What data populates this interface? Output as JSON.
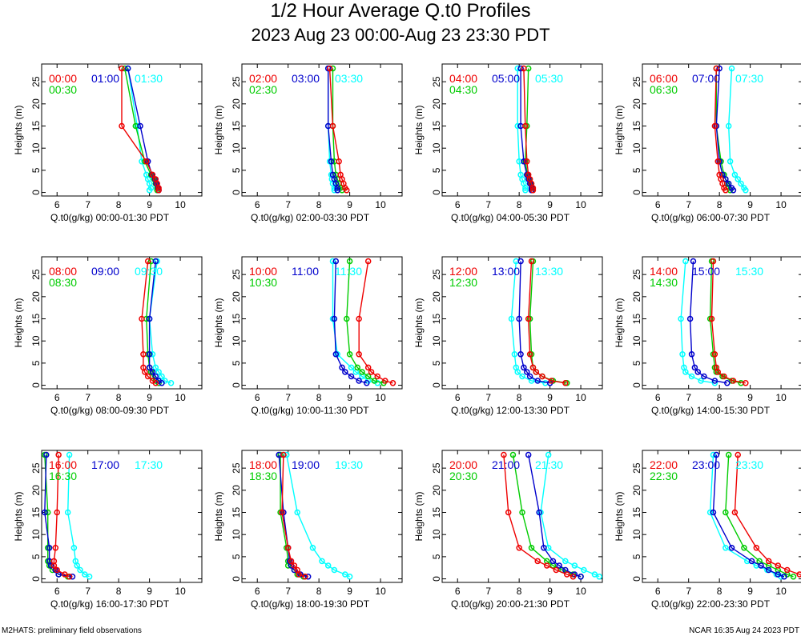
{
  "title_line1": "1/2 Hour Average Q.t0 Profiles",
  "title_line2": "2023 Aug 23 00:00-Aug 23 23:30 PDT",
  "footer_left": "M2HATS: preliminary field observations",
  "footer_right": "NCAR 16:35 Aug 24 2023 PDT",
  "colors": {
    "series1": "#ee0000",
    "series2": "#0000cc",
    "series3": "#00cc00",
    "series4": "#00ffff"
  },
  "chart_data": {
    "type": "scatter",
    "ylabel": "Heights (m)",
    "xlim": [
      5.5,
      10.7
    ],
    "ylim": [
      -0.8,
      29
    ],
    "xticks": [
      6,
      7,
      8,
      9,
      10
    ],
    "yticks": [
      0,
      5,
      10,
      15,
      20,
      25
    ],
    "heights": [
      0.5,
      1,
      2,
      3,
      4,
      7,
      15,
      28
    ],
    "panels": [
      {
        "xlabel": "Q.t0(g/kg) 00:00-01:30 PDT",
        "series": [
          {
            "name": "00:00",
            "values": [
              9.3,
              9.3,
              9.25,
              9.2,
              9.1,
              8.9,
              8.1,
              8.1
            ]
          },
          {
            "name": "01:00",
            "values": [
              9.3,
              9.28,
              9.22,
              9.18,
              9.08,
              8.95,
              8.7,
              8.3
            ]
          },
          {
            "name": "00:30",
            "values": [
              9.25,
              9.25,
              9.2,
              9.15,
              9.05,
              8.85,
              8.55,
              8.2
            ]
          },
          {
            "name": "01:30",
            "values": [
              9.0,
              9.05,
              9.0,
              8.95,
              8.9,
              8.75,
              8.6,
              8.3
            ]
          }
        ]
      },
      {
        "xlabel": "Q.t0(g/kg) 02:00-03:30 PDT",
        "series": [
          {
            "name": "02:00",
            "values": [
              8.9,
              8.85,
              8.8,
              8.75,
              8.7,
              8.65,
              8.45,
              8.35
            ]
          },
          {
            "name": "03:00",
            "values": [
              8.6,
              8.6,
              8.55,
              8.5,
              8.45,
              8.4,
              8.3,
              8.3
            ]
          },
          {
            "name": "02:30",
            "values": [
              8.75,
              8.7,
              8.65,
              8.6,
              8.55,
              8.5,
              8.45,
              8.45
            ]
          },
          {
            "name": "03:30",
            "values": [
              8.5,
              8.5,
              8.45,
              8.42,
              8.4,
              8.35,
              8.3,
              8.3
            ]
          }
        ]
      },
      {
        "xlabel": "Q.t0(g/kg) 04:00-05:30 PDT",
        "series": [
          {
            "name": "04:00",
            "values": [
              8.45,
              8.45,
              8.4,
              8.35,
              8.3,
              8.25,
              8.2,
              8.15
            ]
          },
          {
            "name": "05:00",
            "values": [
              8.4,
              8.4,
              8.35,
              8.3,
              8.25,
              8.15,
              8.05,
              8.05
            ]
          },
          {
            "name": "04:30",
            "values": [
              8.42,
              8.42,
              8.37,
              8.32,
              8.27,
              8.2,
              8.25,
              8.3
            ]
          },
          {
            "name": "05:30",
            "values": [
              8.2,
              8.2,
              8.15,
              8.1,
              8.05,
              8.0,
              7.95,
              7.95
            ]
          }
        ]
      },
      {
        "xlabel": "Q.t0(g/kg) 06:00-07:30 PDT",
        "series": [
          {
            "name": "06:00",
            "values": [
              8.2,
              8.15,
              8.1,
              8.05,
              8.0,
              7.95,
              7.85,
              7.9
            ]
          },
          {
            "name": "07:00",
            "values": [
              8.45,
              8.4,
              8.3,
              8.2,
              8.1,
              8.0,
              7.9,
              8.0
            ]
          },
          {
            "name": "06:30",
            "values": [
              8.35,
              8.3,
              8.25,
              8.2,
              8.15,
              8.05,
              7.9,
              7.9
            ]
          },
          {
            "name": "07:30",
            "values": [
              8.85,
              8.8,
              8.7,
              8.6,
              8.5,
              8.35,
              8.3,
              8.4
            ]
          }
        ]
      },
      {
        "xlabel": "Q.t0(g/kg) 08:00-09:30 PDT",
        "series": [
          {
            "name": "08:00",
            "values": [
              9.2,
              9.1,
              8.95,
              8.85,
              8.8,
              8.8,
              8.75,
              8.95
            ]
          },
          {
            "name": "09:00",
            "values": [
              9.4,
              9.3,
              9.2,
              9.1,
              9.0,
              9.0,
              9.0,
              9.2
            ]
          },
          {
            "name": "08:30",
            "values": [
              9.3,
              9.2,
              9.1,
              9.05,
              9.0,
              8.95,
              8.9,
              9.05
            ]
          },
          {
            "name": "09:30",
            "values": [
              9.7,
              9.5,
              9.4,
              9.3,
              9.2,
              9.1,
              9.0,
              9.25
            ]
          }
        ]
      },
      {
        "xlabel": "Q.t0(g/kg) 10:00-11:30 PDT",
        "series": [
          {
            "name": "10:00",
            "values": [
              10.4,
              10.15,
              9.9,
              9.7,
              9.6,
              9.3,
              9.3,
              9.6
            ]
          },
          {
            "name": "11:00",
            "values": [
              9.55,
              9.3,
              9.05,
              8.85,
              8.75,
              8.55,
              8.5,
              8.55
            ]
          },
          {
            "name": "10:30",
            "values": [
              10.1,
              9.8,
              9.6,
              9.4,
              9.25,
              9.0,
              8.9,
              9.0
            ]
          },
          {
            "name": "11:30",
            "values": [
              9.9,
              9.6,
              9.4,
              9.2,
              9.05,
              8.6,
              8.45,
              8.45
            ]
          }
        ]
      },
      {
        "xlabel": "Q.t0(g/kg) 12:00-13:30 PDT",
        "series": [
          {
            "name": "12:00",
            "values": [
              9.5,
              9.05,
              8.75,
              8.55,
              8.45,
              8.35,
              8.3,
              8.4
            ]
          },
          {
            "name": "13:00",
            "values": [
              9.0,
              8.6,
              8.35,
              8.25,
              8.15,
              8.05,
              8.0,
              8.05
            ]
          },
          {
            "name": "12:30",
            "values": [
              9.55,
              9.1,
              8.75,
              8.55,
              8.45,
              8.4,
              8.35,
              8.45
            ]
          },
          {
            "name": "13:30",
            "values": [
              8.85,
              8.4,
              8.1,
              7.95,
              7.9,
              7.85,
              7.75,
              7.9
            ]
          }
        ]
      },
      {
        "xlabel": "Q.t0(g/kg) 14:00-15:30 PDT",
        "series": [
          {
            "name": "14:00",
            "values": [
              8.85,
              8.45,
              8.15,
              7.95,
              7.9,
              7.85,
              7.75,
              7.8
            ]
          },
          {
            "name": "15:00",
            "values": [
              8.25,
              7.85,
              7.5,
              7.3,
              7.2,
              7.1,
              7.05,
              7.15
            ]
          },
          {
            "name": "14:30",
            "values": [
              8.7,
              8.4,
              8.1,
              7.9,
              7.85,
              7.8,
              7.7,
              7.75
            ]
          },
          {
            "name": "15:30",
            "values": [
              7.85,
              7.4,
              7.1,
              6.9,
              6.85,
              6.8,
              6.75,
              6.9
            ]
          }
        ]
      },
      {
        "xlabel": "Q.t0(g/kg) 16:00-17:30 PDT",
        "series": [
          {
            "name": "16:00",
            "values": [
              6.4,
              6.25,
              6.0,
              5.9,
              5.9,
              5.95,
              6.0,
              6.05
            ]
          },
          {
            "name": "17:00",
            "values": [
              6.5,
              6.05,
              5.95,
              5.8,
              5.75,
              5.75,
              5.6,
              5.65
            ]
          },
          {
            "name": "16:30",
            "values": [
              6.35,
              6.05,
              5.85,
              5.75,
              5.7,
              5.7,
              5.7,
              5.6
            ]
          },
          {
            "name": "17:30",
            "values": [
              7.05,
              6.9,
              6.75,
              6.65,
              6.6,
              6.55,
              6.35,
              6.4
            ]
          }
        ]
      },
      {
        "xlabel": "Q.t0(g/kg) 18:00-19:30 PDT",
        "series": [
          {
            "name": "18:00",
            "values": [
              7.55,
              7.35,
              7.3,
              7.2,
              7.1,
              7.0,
              6.8,
              6.85
            ]
          },
          {
            "name": "19:00",
            "values": [
              7.65,
              7.4,
              7.2,
              7.1,
              7.05,
              7.0,
              6.85,
              6.7
            ]
          },
          {
            "name": "18:30",
            "values": [
              7.5,
              7.3,
              7.2,
              7.0,
              7.0,
              6.95,
              6.75,
              6.75
            ]
          },
          {
            "name": "19:30",
            "values": [
              9.0,
              8.85,
              8.5,
              8.3,
              8.1,
              7.8,
              7.3,
              6.95
            ]
          }
        ]
      },
      {
        "xlabel": "Q.t0(g/kg) 20:00-21:30 PDT",
        "series": [
          {
            "name": "20:00",
            "values": [
              9.75,
              9.55,
              9.2,
              8.9,
              8.6,
              8.0,
              7.65,
              7.5
            ]
          },
          {
            "name": "21:00",
            "values": [
              10.0,
              9.8,
              9.5,
              9.3,
              9.1,
              8.8,
              8.65,
              8.3
            ]
          },
          {
            "name": "20:30",
            "values": [
              10.0,
              9.75,
              9.4,
              9.1,
              8.9,
              8.4,
              8.1,
              7.8
            ]
          },
          {
            "name": "21:30",
            "values": [
              10.6,
              10.45,
              10.1,
              9.8,
              9.5,
              8.95,
              8.7,
              8.95
            ]
          }
        ]
      },
      {
        "xlabel": "Q.t0(g/kg) 22:00-23:30 PDT",
        "series": [
          {
            "name": "22:00",
            "values": [
              10.75,
              10.6,
              10.2,
              9.9,
              9.6,
              9.2,
              8.5,
              8.6
            ]
          },
          {
            "name": "23:00",
            "values": [
              10.1,
              9.9,
              9.6,
              9.35,
              9.05,
              8.4,
              7.8,
              7.9
            ]
          },
          {
            "name": "22:30",
            "values": [
              10.4,
              10.2,
              9.9,
              9.6,
              9.3,
              8.8,
              8.2,
              8.3
            ]
          },
          {
            "name": "23:30",
            "values": [
              10.0,
              9.85,
              9.55,
              9.2,
              8.9,
              8.2,
              7.7,
              7.8
            ]
          }
        ]
      }
    ]
  }
}
